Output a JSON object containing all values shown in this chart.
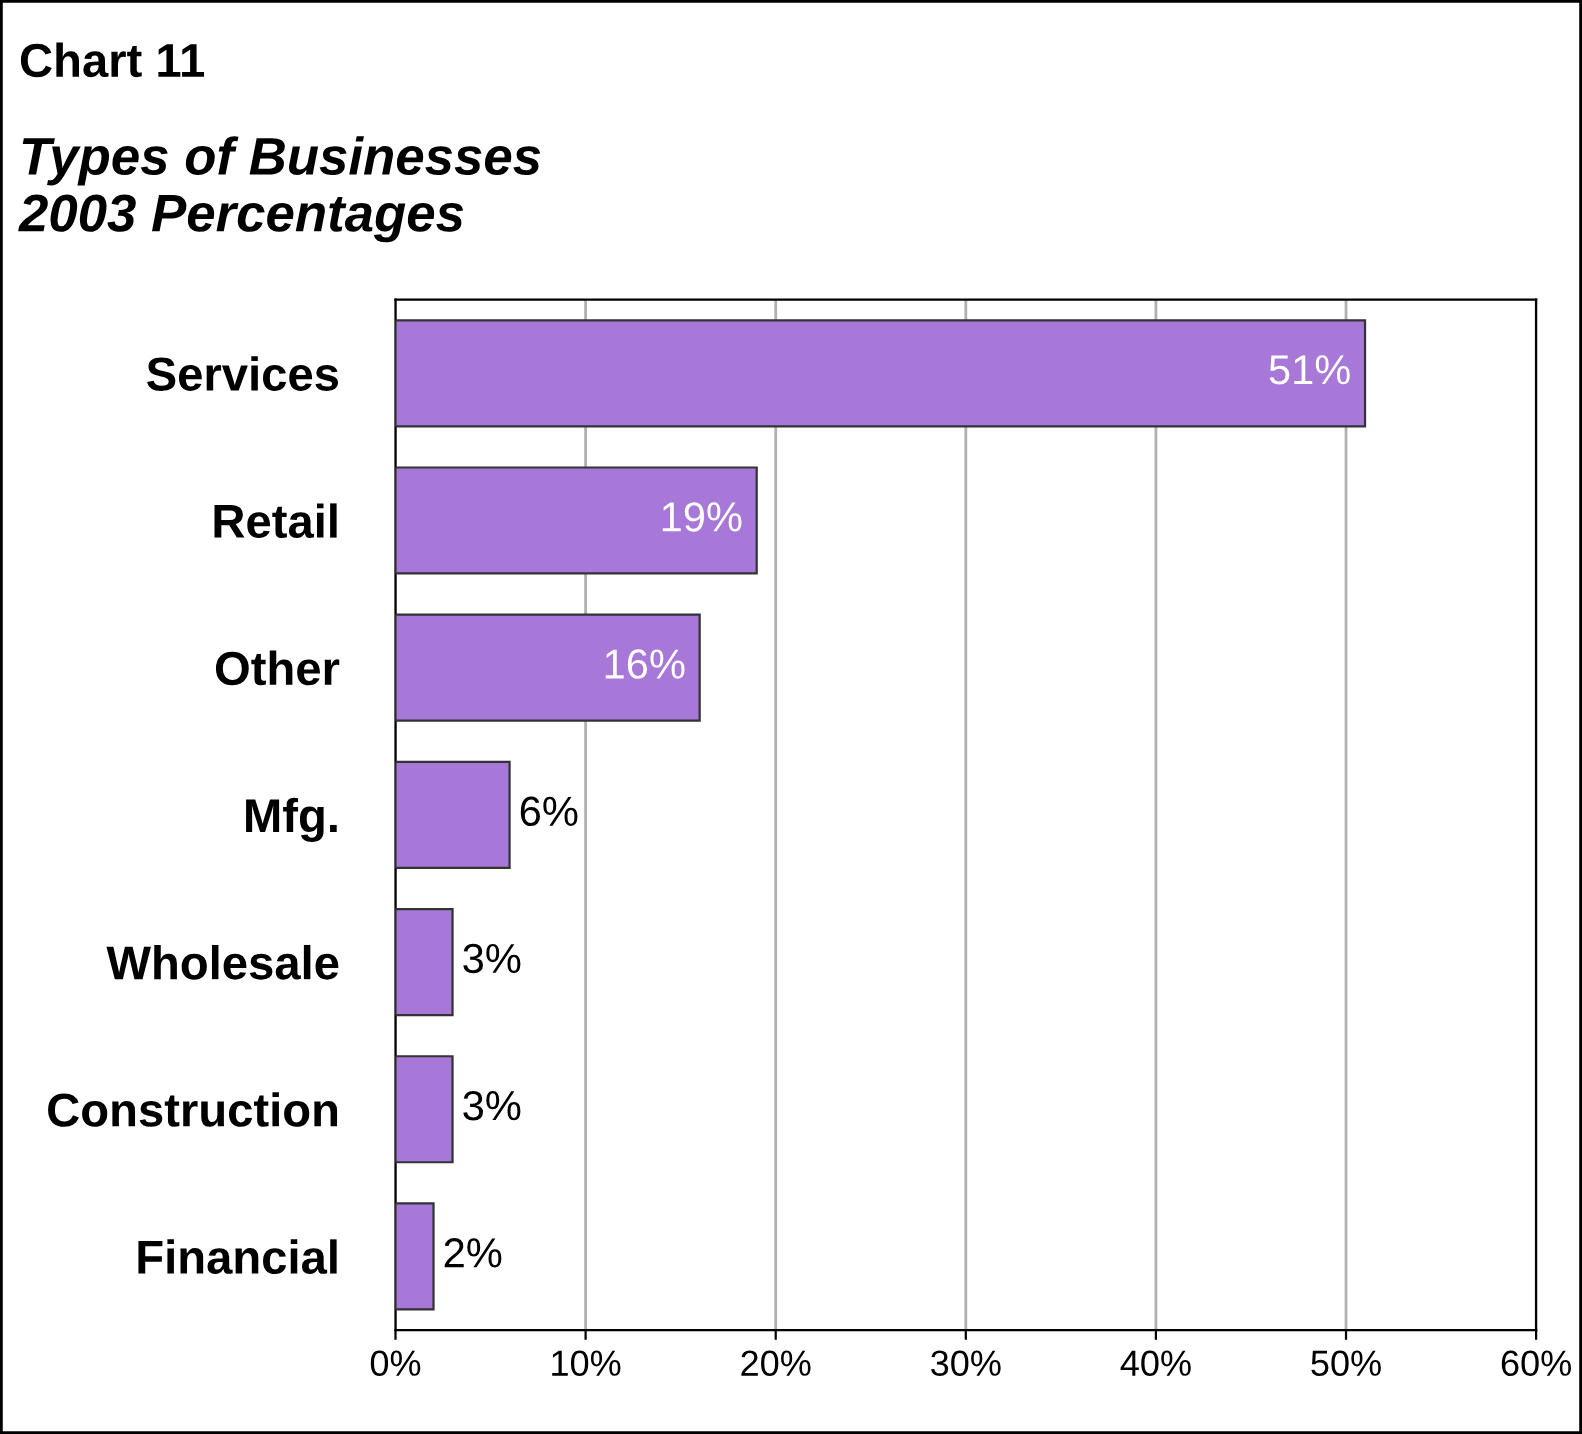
{
  "chart_data": {
    "type": "bar",
    "orientation": "horizontal",
    "title": "Chart 11",
    "subtitle": "Types of Businesses\n2003 Percentages",
    "categories": [
      "Services",
      "Retail",
      "Other",
      "Mfg.",
      "Wholesale",
      "Construction",
      "Financial"
    ],
    "values": [
      51,
      19,
      16,
      6,
      3,
      3,
      2
    ],
    "value_labels": [
      "51%",
      "19%",
      "16%",
      "6%",
      "3%",
      "3%",
      "2%"
    ],
    "color": "#a878d8",
    "xlim": [
      0,
      60
    ],
    "xticks": [
      {
        "value": 0,
        "label": "0%"
      },
      {
        "value": 10,
        "label": "10%"
      },
      {
        "value": 20,
        "label": "20%"
      },
      {
        "value": 30,
        "label": "30%"
      },
      {
        "value": 40,
        "label": "40%"
      },
      {
        "value": 50,
        "label": "50%"
      },
      {
        "value": 60,
        "label": "60%"
      }
    ],
    "grid": "x"
  }
}
